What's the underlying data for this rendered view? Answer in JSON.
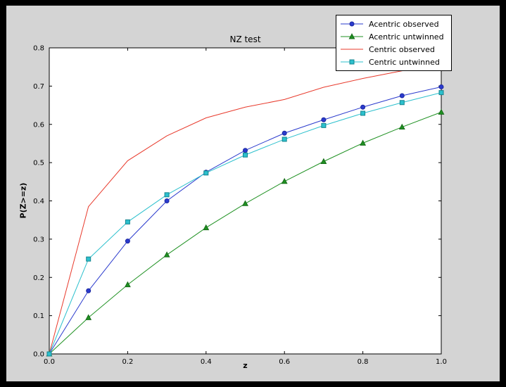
{
  "window": {
    "outer_bg": "#000000",
    "figure_bg": "#d4d4d4",
    "plot_bg": "#ffffff",
    "axis_color": "#000000"
  },
  "chart_data": {
    "type": "line",
    "title": "NZ test",
    "xlabel": "z",
    "ylabel": "P(Z>=z)",
    "xlim": [
      0.0,
      1.0
    ],
    "ylim": [
      0.0,
      0.8
    ],
    "x_ticks": [
      0.0,
      0.2,
      0.4,
      0.6,
      0.8,
      1.0
    ],
    "y_ticks": [
      0.0,
      0.1,
      0.2,
      0.3,
      0.4,
      0.5,
      0.6,
      0.7,
      0.8
    ],
    "grid": false,
    "legend_position": "upper right, overlapping top of axes",
    "x": [
      0.0,
      0.1,
      0.2,
      0.3,
      0.4,
      0.5,
      0.6,
      0.7,
      0.8,
      0.9,
      1.0
    ],
    "series": [
      {
        "name": "Acentric observed",
        "color": "#2a3acd",
        "marker": "circle",
        "marker_edge": "#1c28a0",
        "values": [
          0.0,
          0.165,
          0.295,
          0.4,
          0.475,
          0.532,
          0.577,
          0.612,
          0.645,
          0.675,
          0.698
        ]
      },
      {
        "name": "Acentric untwinned",
        "color": "#1f9122",
        "marker": "triangle",
        "marker_edge": "#166b18",
        "values": [
          0.0,
          0.095,
          0.181,
          0.259,
          0.33,
          0.393,
          0.451,
          0.503,
          0.551,
          0.593,
          0.632
        ]
      },
      {
        "name": "Centric observed",
        "color": "#e8392b",
        "marker": "none",
        "marker_edge": "#e8392b",
        "values": [
          0.0,
          0.385,
          0.505,
          0.57,
          0.617,
          0.645,
          0.665,
          0.697,
          0.72,
          0.74,
          0.757
        ]
      },
      {
        "name": "Centric untwinned",
        "color": "#2cc0cd",
        "marker": "square",
        "marker_edge": "#15858f",
        "values": [
          0.0,
          0.248,
          0.345,
          0.416,
          0.473,
          0.52,
          0.561,
          0.597,
          0.629,
          0.657,
          0.683
        ]
      }
    ]
  }
}
